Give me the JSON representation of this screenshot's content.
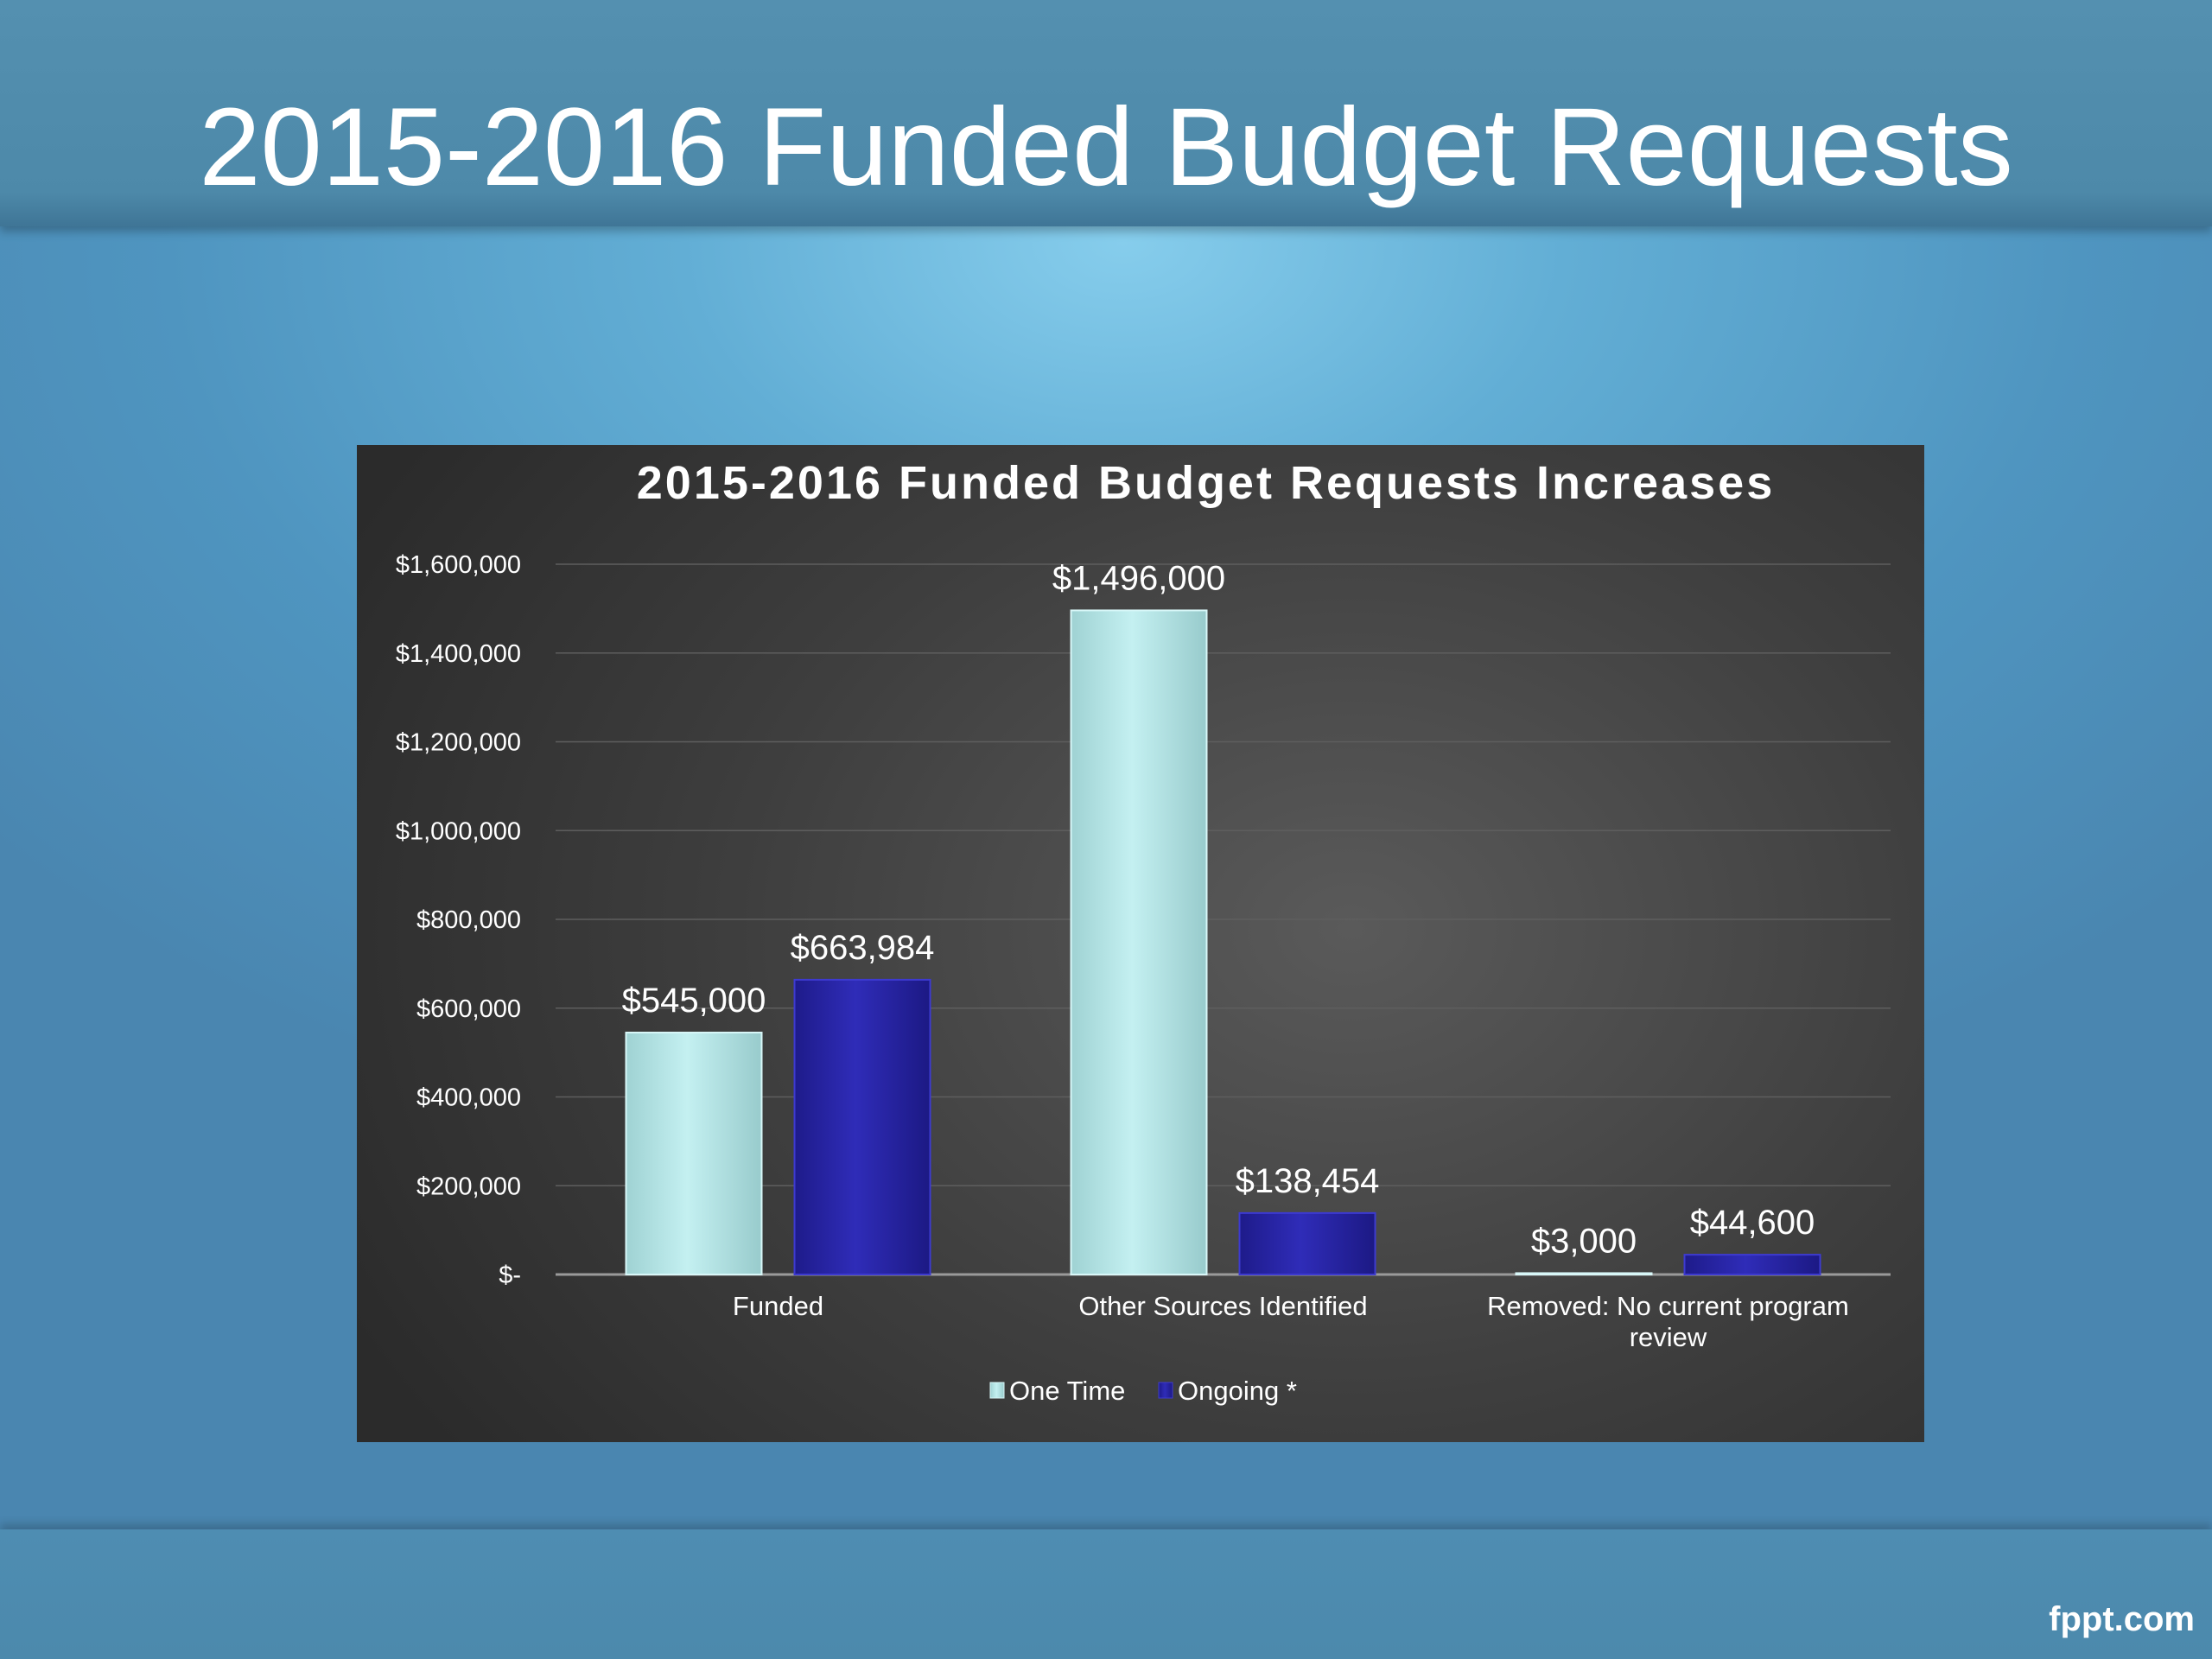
{
  "slide": {
    "title": "2015-2016 Funded Budget Requests",
    "footer_logo": "fppt.com"
  },
  "colors": {
    "one_time": "#b5e6e8",
    "ongoing": "#2a27a8"
  },
  "chart_data": {
    "type": "bar",
    "title": "2015-2016 Funded Budget Requests Increases",
    "xlabel": "",
    "ylabel": "",
    "categories": [
      [
        "Funded"
      ],
      [
        "Other Sources Identified"
      ],
      [
        "Removed: No current program",
        "review"
      ]
    ],
    "series": [
      {
        "name": "One Time",
        "values": [
          545000,
          1496000,
          3000
        ],
        "labels": [
          "$545,000",
          "$1,496,000",
          "$3,000"
        ]
      },
      {
        "name": "Ongoing *",
        "values": [
          663984,
          138454,
          44600
        ],
        "labels": [
          "$663,984",
          "$138,454",
          "$44,600"
        ]
      }
    ],
    "ylim": [
      0,
      1600000
    ],
    "yticks": [
      0,
      200000,
      400000,
      600000,
      800000,
      1000000,
      1200000,
      1400000,
      1600000
    ],
    "ytick_labels": [
      "$-",
      "$200,000",
      "$400,000",
      "$600,000",
      "$800,000",
      "$1,000,000",
      "$1,200,000",
      "$1,400,000",
      "$1,600,000"
    ],
    "grid": true,
    "legend": "bottom"
  }
}
